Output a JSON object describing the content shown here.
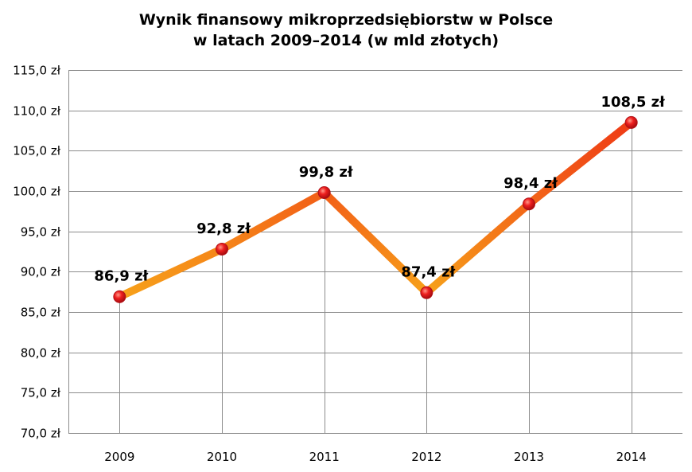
{
  "chart_data": {
    "type": "line",
    "title_lines": [
      "Wynik finansowy mikroprzedsiębiorstw w Polsce",
      "w latach 2009–2014 (w mld złotych)"
    ],
    "categories": [
      "2009",
      "2010",
      "2011",
      "2012",
      "2013",
      "2014"
    ],
    "values": [
      86.9,
      92.8,
      99.8,
      87.4,
      98.4,
      108.5
    ],
    "data_labels": [
      "86,9 zł",
      "92,8 zł",
      "99,8 zł",
      "87,4 zł",
      "98,4 zł",
      "108,5 zł"
    ],
    "y_ticks": [
      70,
      75,
      80,
      85,
      90,
      95,
      100,
      105,
      110,
      115
    ],
    "y_tick_labels": [
      "70,0 zł",
      "75,0 zł",
      "80,0 zł",
      "85,0 zł",
      "90,0 zł",
      "95,0 zł",
      "100,0 zł",
      "105,0 zł",
      "110,0 zł",
      "115,0 zł"
    ],
    "ylim": [
      70,
      115
    ],
    "grid": true,
    "legend": "none",
    "colors": {
      "line_low": "#f7a11a",
      "line_high": "#ef3b16",
      "marker": "#e8141b",
      "grid": "#8c8c8c"
    }
  }
}
